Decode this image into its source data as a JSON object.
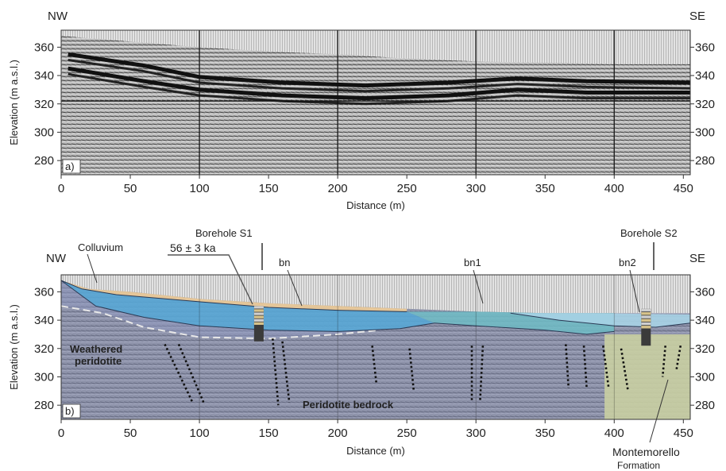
{
  "chart_data": [
    {
      "type": "scatter",
      "panel": "a)",
      "corner_left": "NW",
      "corner_right": "SE",
      "xlabel": "Distance (m)",
      "ylabel": "Elevation (m a.s.l.)",
      "xlim": [
        0,
        455
      ],
      "ylim": [
        270,
        372
      ],
      "xticks": [
        "0",
        "50",
        "100",
        "150",
        "200",
        "250",
        "300",
        "350",
        "400",
        "450"
      ],
      "yticks": [
        "280",
        "300",
        "320",
        "340",
        "360"
      ],
      "yticks_right": [
        "280",
        "300",
        "320",
        "340",
        "360"
      ],
      "grid_x": [
        100,
        200,
        300,
        400
      ],
      "grid_y": [
        322
      ],
      "surface": [
        [
          0,
          368
        ],
        [
          50,
          364
        ],
        [
          100,
          360
        ],
        [
          150,
          357
        ],
        [
          200,
          355
        ],
        [
          250,
          352
        ],
        [
          300,
          350
        ],
        [
          350,
          349
        ],
        [
          400,
          348
        ],
        [
          455,
          348
        ]
      ],
      "reflectors": [
        [
          [
            5,
            355
          ],
          [
            60,
            347
          ],
          [
            100,
            339
          ],
          [
            160,
            335
          ],
          [
            220,
            333
          ],
          [
            280,
            335
          ],
          [
            330,
            338
          ],
          [
            380,
            336
          ],
          [
            455,
            335
          ]
        ],
        [
          [
            5,
            345
          ],
          [
            60,
            336
          ],
          [
            100,
            330
          ],
          [
            160,
            326
          ],
          [
            220,
            324
          ],
          [
            280,
            326
          ],
          [
            330,
            330
          ],
          [
            380,
            328
          ],
          [
            455,
            328
          ]
        ]
      ]
    },
    {
      "type": "scatter",
      "panel": "b)",
      "corner_left": "NW",
      "corner_right": "SE",
      "xlabel": "Distance (m)",
      "ylabel": "Elevation (m a.s.l.)",
      "xlim": [
        0,
        455
      ],
      "ylim": [
        270,
        372
      ],
      "xticks": [
        "0",
        "50",
        "100",
        "150",
        "200",
        "250",
        "300",
        "350",
        "400",
        "450"
      ],
      "yticks": [
        "280",
        "300",
        "320",
        "340",
        "360"
      ],
      "yticks_right": [
        "280",
        "300",
        "320",
        "340",
        "360"
      ],
      "grid_x": [
        100,
        200,
        300,
        400
      ],
      "labels": {
        "colluvium": "Colluvium",
        "age": "56 ± 3 ka",
        "borehole_s1": "Borehole S1",
        "borehole_s2": "Borehole S2",
        "bn": "bn",
        "bn1": "bn1",
        "bn2": "bn2",
        "weathered_1": "Weathered",
        "weathered_2": "peridotite",
        "bedrock": "Peridotite bedrock",
        "formation_1": "Montemorello",
        "formation_2": "Formation"
      },
      "boreholes": [
        {
          "name": "S1",
          "x": 143,
          "top": 350,
          "bottom": 325
        },
        {
          "name": "S2",
          "x": 423,
          "top": 348,
          "bottom": 322
        }
      ],
      "units": {
        "ground_surface": [
          [
            0,
            368
          ],
          [
            20,
            362
          ],
          [
            50,
            360
          ],
          [
            100,
            355
          ],
          [
            150,
            352
          ],
          [
            200,
            350
          ],
          [
            250,
            348
          ],
          [
            300,
            346
          ],
          [
            350,
            345
          ],
          [
            400,
            345
          ],
          [
            455,
            345
          ]
        ],
        "colluvium_base": [
          [
            0,
            368
          ],
          [
            15,
            362
          ],
          [
            40,
            358
          ],
          [
            100,
            353
          ],
          [
            150,
            349
          ],
          [
            200,
            347
          ],
          [
            250,
            346
          ]
        ],
        "bn_base": [
          [
            0,
            368
          ],
          [
            25,
            350
          ],
          [
            60,
            342
          ],
          [
            100,
            336
          ],
          [
            150,
            333
          ],
          [
            200,
            332
          ],
          [
            245,
            334
          ],
          [
            270,
            338
          ]
        ],
        "bn1_base": [
          [
            270,
            338
          ],
          [
            300,
            336
          ],
          [
            350,
            333
          ],
          [
            380,
            330
          ],
          [
            400,
            332
          ]
        ],
        "bn2_top": [
          [
            325,
            345
          ],
          [
            380,
            345
          ],
          [
            455,
            344
          ]
        ],
        "bn2_base": [
          [
            325,
            345
          ],
          [
            360,
            340
          ],
          [
            400,
            336
          ],
          [
            430,
            335
          ],
          [
            455,
            338
          ]
        ],
        "weathered_base": [
          [
            0,
            350
          ],
          [
            30,
            345
          ],
          [
            60,
            335
          ],
          [
            100,
            328
          ],
          [
            150,
            327
          ],
          [
            200,
            330
          ],
          [
            230,
            333
          ]
        ],
        "formation_range": [
          393,
          455
        ],
        "formation_top": 330
      },
      "faults": [
        [
          [
            75,
            323
          ],
          [
            95,
            282
          ]
        ],
        [
          [
            85,
            323
          ],
          [
            103,
            282
          ]
        ],
        [
          [
            153,
            327
          ],
          [
            157,
            280
          ]
        ],
        [
          [
            160,
            325
          ],
          [
            165,
            282
          ]
        ],
        [
          [
            225,
            322
          ],
          [
            228,
            295
          ]
        ],
        [
          [
            252,
            320
          ],
          [
            255,
            290
          ]
        ],
        [
          [
            297,
            322
          ],
          [
            297,
            282
          ]
        ],
        [
          [
            305,
            322
          ],
          [
            303,
            283
          ]
        ],
        [
          [
            365,
            323
          ],
          [
            367,
            292
          ]
        ],
        [
          [
            378,
            322
          ],
          [
            380,
            293
          ]
        ],
        [
          [
            392,
            322
          ],
          [
            396,
            292
          ]
        ],
        [
          [
            405,
            320
          ],
          [
            410,
            290
          ]
        ],
        [
          [
            437,
            322
          ],
          [
            435,
            300
          ]
        ],
        [
          [
            448,
            322
          ],
          [
            445,
            305
          ]
        ]
      ]
    }
  ]
}
